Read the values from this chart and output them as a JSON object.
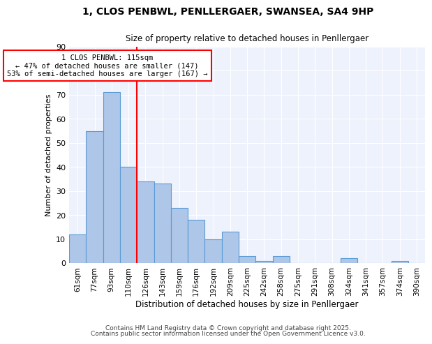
{
  "title_line1": "1, CLOS PENBWL, PENLLERGAER, SWANSEA, SA4 9HP",
  "title_line2": "Size of property relative to detached houses in Penllergaer",
  "xlabel": "Distribution of detached houses by size in Penllergaer",
  "ylabel": "Number of detached properties",
  "categories": [
    "61sqm",
    "77sqm",
    "93sqm",
    "110sqm",
    "126sqm",
    "143sqm",
    "159sqm",
    "176sqm",
    "192sqm",
    "209sqm",
    "225sqm",
    "242sqm",
    "258sqm",
    "275sqm",
    "291sqm",
    "308sqm",
    "324sqm",
    "341sqm",
    "357sqm",
    "374sqm",
    "390sqm"
  ],
  "values": [
    12,
    55,
    71,
    40,
    34,
    33,
    23,
    18,
    10,
    13,
    3,
    1,
    3,
    0,
    0,
    0,
    2,
    0,
    0,
    1,
    0
  ],
  "bar_color": "#aec6e8",
  "bar_edge_color": "#5b9bd5",
  "vline_x": 3.5,
  "vline_color": "red",
  "annotation_text": "1 CLOS PENBWL: 115sqm\n← 47% of detached houses are smaller (147)\n53% of semi-detached houses are larger (167) →",
  "annotation_box_color": "white",
  "annotation_box_edge": "red",
  "ylim": [
    0,
    90
  ],
  "yticks": [
    0,
    10,
    20,
    30,
    40,
    50,
    60,
    70,
    80,
    90
  ],
  "bg_color": "#eef2fc",
  "footer_line1": "Contains HM Land Registry data © Crown copyright and database right 2025.",
  "footer_line2": "Contains public sector information licensed under the Open Government Licence v3.0."
}
